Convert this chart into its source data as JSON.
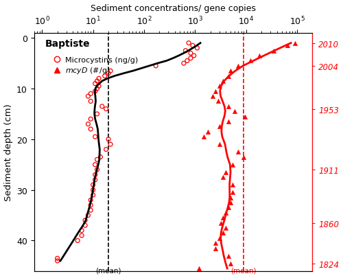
{
  "title": "Sediment concentrations/ gene copies",
  "ylabel": "Sediment depth (cm)",
  "site_label": "Baptiste",
  "xlim_log": [
    -0.155,
    5.3
  ],
  "ylim": [
    46,
    -1
  ],
  "mean_mc": 20.0,
  "mean_mcy": 9000.0,
  "right_year_positions": [
    1.0,
    5.5,
    14.0,
    26.0,
    36.5,
    44.5
  ],
  "right_year_labels": [
    "2010",
    "2004",
    "1953",
    "1911",
    "1860",
    "1824"
  ],
  "mc_depth": [
    1.0,
    1.5,
    2.0,
    2.5,
    3.0,
    3.5,
    4.0,
    4.5,
    5.0,
    5.5,
    6.5,
    7.0,
    7.5,
    8.0,
    8.5,
    9.0,
    9.5,
    10.0,
    10.5,
    11.0,
    11.5,
    12.5,
    13.5,
    14.0,
    15.0,
    16.0,
    17.0,
    18.0,
    19.5,
    20.0,
    21.0,
    22.0,
    23.5,
    24.0,
    25.0,
    26.0,
    27.0,
    28.0,
    29.0,
    30.0,
    31.0,
    32.0,
    33.0,
    34.0,
    35.0,
    36.0,
    37.0,
    38.0,
    39.0,
    40.0,
    43.5,
    44.0
  ],
  "mc_val": [
    750,
    900,
    1100,
    650,
    820,
    950,
    820,
    700,
    600,
    170,
    22,
    20,
    17,
    13,
    12,
    11,
    13,
    12,
    11,
    9,
    8,
    9,
    15,
    18,
    12,
    9,
    8,
    9,
    11,
    20,
    22,
    18,
    14,
    12,
    11,
    12,
    11,
    11,
    10,
    10,
    10,
    9,
    9,
    9,
    8,
    7,
    7,
    6,
    6,
    5,
    2,
    2
  ],
  "mcy_depth": [
    1.0,
    1.5,
    2.5,
    3.5,
    4.5,
    5.5,
    6.5,
    7.5,
    8.5,
    9.5,
    10.5,
    11.5,
    12.5,
    13.5,
    14.5,
    15.5,
    16.5,
    17.5,
    18.5,
    19.5,
    21.0,
    22.5,
    23.5,
    25.0,
    26.5,
    27.5,
    29.0,
    30.5,
    31.5,
    32.5,
    33.5,
    34.5,
    35.5,
    36.5,
    37.5,
    38.5,
    39.5,
    40.5,
    41.5,
    43.0,
    44.5,
    45.5
  ],
  "mcy_val": [
    90000,
    65000,
    35000,
    18000,
    12000,
    7000,
    5000,
    4500,
    3500,
    3000,
    2500,
    2200,
    2800,
    4500,
    6000,
    9500,
    4500,
    3000,
    1800,
    1500,
    3000,
    7000,
    9000,
    5500,
    4000,
    3500,
    5500,
    5500,
    5000,
    5000,
    4500,
    4000,
    3500,
    3200,
    4000,
    3500,
    3000,
    2500,
    2500,
    4500,
    5000,
    1200
  ],
  "mc_loess_depth": [
    1.0,
    1.5,
    2.0,
    2.5,
    3.0,
    3.5,
    4.0,
    4.5,
    5.0,
    5.5,
    6.0,
    6.5,
    7.0,
    7.5,
    8.0,
    8.5,
    9.0,
    9.5,
    10.0,
    10.5,
    11.0,
    12.0,
    13.0,
    14.0,
    15.0,
    16.0,
    17.0,
    18.0,
    19.0,
    20.0,
    21.0,
    22.0,
    23.0,
    24.0,
    25.0,
    26.0,
    27.0,
    28.0,
    29.0,
    30.0,
    31.0,
    32.0,
    33.0,
    34.0,
    35.0,
    36.0,
    37.0,
    38.0,
    39.0,
    40.0,
    41.0,
    42.0,
    43.0,
    44.0,
    45.0
  ],
  "mc_loess_val": [
    750,
    780,
    900,
    800,
    750,
    820,
    780,
    700,
    550,
    200,
    50,
    22,
    19,
    16,
    13,
    12,
    12,
    12,
    12,
    11,
    10,
    9,
    11,
    15,
    13,
    11,
    9,
    9,
    10,
    18,
    20,
    18,
    15,
    13,
    11,
    11,
    11,
    10,
    10,
    9,
    9,
    9,
    8,
    8,
    7,
    7,
    6,
    6,
    5,
    5,
    4,
    4,
    3,
    2.5,
    2
  ],
  "mcy_loess_depth": [
    1.0,
    2.0,
    3.0,
    4.0,
    5.0,
    6.0,
    7.0,
    8.0,
    9.0,
    10.0,
    11.0,
    12.0,
    13.0,
    14.0,
    15.0,
    16.0,
    17.0,
    18.0,
    19.0,
    20.0,
    21.0,
    22.0,
    23.0,
    24.0,
    25.0,
    26.0,
    27.0,
    28.0,
    29.0,
    30.0,
    31.0,
    32.0,
    33.0,
    34.0,
    35.0,
    36.0,
    37.0,
    38.0,
    39.0,
    40.0,
    41.0,
    42.0,
    43.0,
    44.0,
    45.0
  ],
  "mcy_loess_val": [
    75000,
    45000,
    22000,
    13000,
    8000,
    5500,
    4500,
    3800,
    3200,
    2800,
    2600,
    3000,
    4000,
    5500,
    7500,
    5500,
    4000,
    2800,
    2200,
    2200,
    2500,
    3500,
    5000,
    6000,
    5500,
    4800,
    4200,
    4800,
    5200,
    5200,
    5000,
    4800,
    4500,
    4200,
    3800,
    3600,
    3800,
    3600,
    3200,
    2800,
    2600,
    2800,
    3500,
    4200,
    3000
  ]
}
